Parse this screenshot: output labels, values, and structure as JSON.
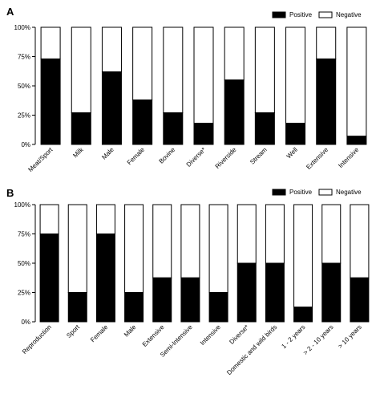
{
  "chart_data": [
    {
      "type": "bar",
      "stacked": true,
      "panel": "A",
      "categories": [
        "Meat/Sport",
        "Milk",
        "Male",
        "Female",
        "Bovine",
        "Diverse*",
        "Riverside",
        "Stream",
        "Well",
        "Extensive",
        "Intensive"
      ],
      "series": [
        {
          "name": "Positive",
          "color": "#000000",
          "values": [
            73,
            27,
            62,
            38,
            27,
            18,
            55,
            27,
            18,
            73,
            7
          ]
        },
        {
          "name": "Negative",
          "color": "#ffffff",
          "values": [
            27,
            73,
            38,
            62,
            73,
            82,
            45,
            73,
            82,
            27,
            93
          ]
        }
      ],
      "yticks": [
        "0%",
        "25%",
        "50%",
        "75%",
        "100%"
      ],
      "ylim": [
        0,
        100
      ],
      "legend_position": "top-right"
    },
    {
      "type": "bar",
      "stacked": true,
      "panel": "B",
      "categories": [
        "Reproduction",
        "Sport",
        "Female",
        "Male",
        "Extensive",
        "Semi-Intensive",
        "Intensive",
        "Diverse*",
        "Domestic and wild birds",
        "1 - 2 years",
        "> 2 - 10 years",
        "> 10 years"
      ],
      "series": [
        {
          "name": "Positive",
          "color": "#000000",
          "values": [
            75,
            25,
            75,
            25,
            37.5,
            37.5,
            25,
            50,
            50,
            12.5,
            50,
            37.5
          ]
        },
        {
          "name": "Negative",
          "color": "#ffffff",
          "values": [
            25,
            75,
            25,
            75,
            62.5,
            62.5,
            75,
            50,
            50,
            87.5,
            50,
            62.5
          ]
        }
      ],
      "yticks": [
        "0%",
        "25%",
        "50%",
        "75%",
        "100%"
      ],
      "ylim": [
        0,
        100
      ],
      "legend_position": "top-right"
    }
  ]
}
